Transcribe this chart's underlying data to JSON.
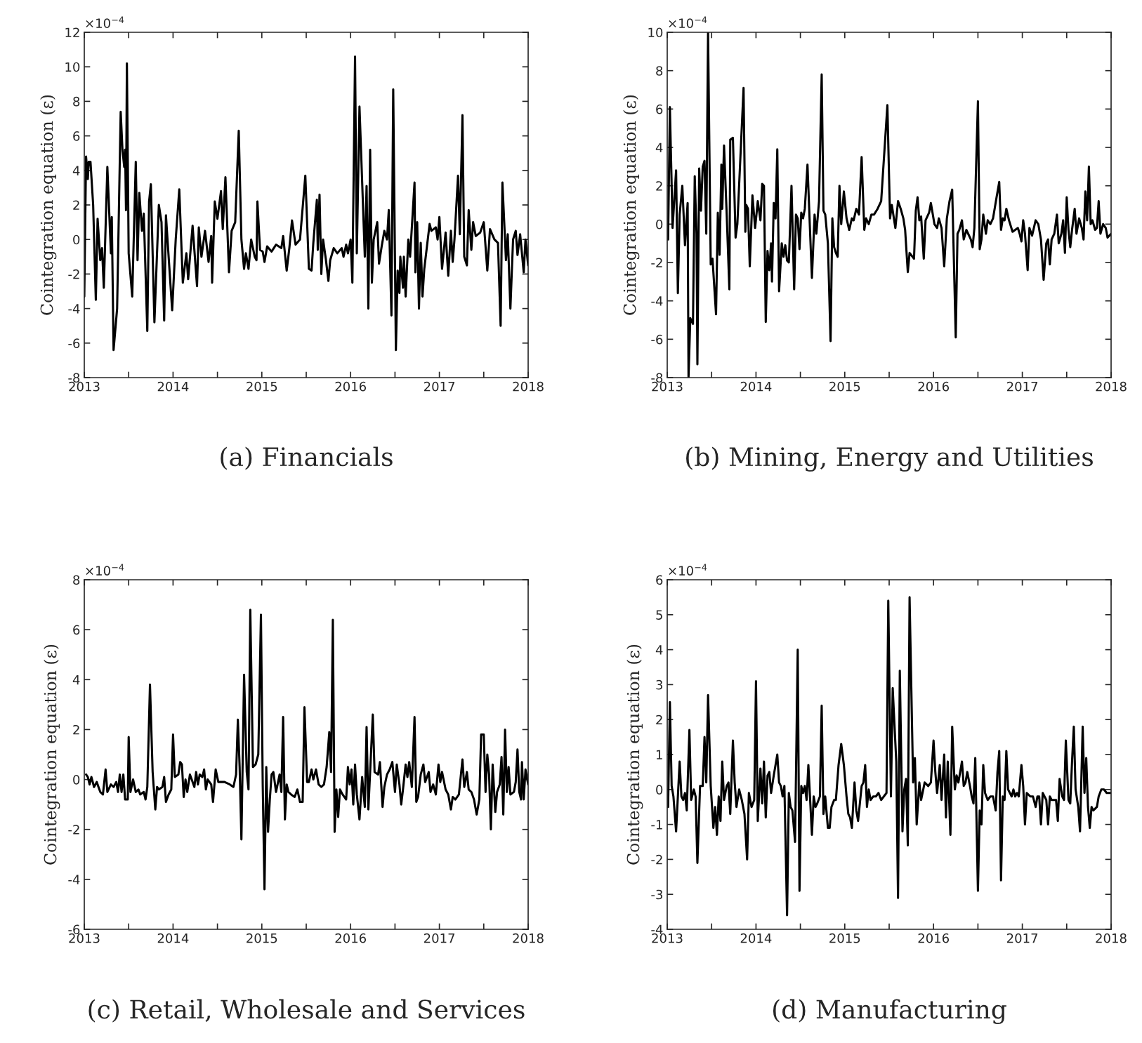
{
  "chart_data": [
    {
      "type": "line",
      "ylabel": "Cointegration equation (ε)",
      "annotations": [
        "×10$^{−4}$",
        "(a) Financials"
      ],
      "xlim": [
        2013,
        2018
      ],
      "ylim": [
        -8,
        12
      ],
      "xticks": [
        2013,
        {
          "value": 2013.5,
          "label": null
        },
        2014,
        {
          "value": 2014.5,
          "label": null
        },
        2015,
        {
          "value": 2015.5,
          "label": null
        },
        2016,
        {
          "value": 2016.5,
          "label": null
        },
        2017,
        {
          "value": 2017.5,
          "label": null
        },
        2018
      ],
      "yticks": [
        -8,
        -6,
        -4,
        -2,
        0,
        2,
        4,
        6,
        8,
        10,
        12
      ],
      "grid": false,
      "marker": "none",
      "line_style": "solid",
      "x": [
        2013.0,
        2013.02,
        2013.04,
        2013.05,
        2013.07,
        2013.1,
        2013.13,
        2013.15,
        2013.18,
        2013.2,
        2013.22,
        2013.26,
        2013.3,
        2013.31,
        2013.33,
        2013.37,
        2013.41,
        2013.43,
        2013.45,
        2013.46,
        2013.47,
        2013.48,
        2013.5,
        2013.54,
        2013.58,
        2013.6,
        2013.62,
        2013.65,
        2013.67,
        2013.71,
        2013.73,
        2013.75,
        2013.79,
        2013.84,
        2013.87,
        2013.9,
        2013.92,
        2013.94,
        2013.99,
        2014.03,
        2014.07,
        2014.11,
        2014.15,
        2014.17,
        2014.22,
        2014.27,
        2014.29,
        2014.32,
        2014.36,
        2014.4,
        2014.43,
        2014.44,
        2014.47,
        2014.5,
        2014.54,
        2014.56,
        2014.59,
        2014.63,
        2014.66,
        2014.7,
        2014.74,
        2014.77,
        2014.8,
        2014.82,
        2014.85,
        2014.88,
        2014.92,
        2014.94,
        2014.95,
        2014.98,
        2015.01,
        2015.03,
        2015.06,
        2015.11,
        2015.16,
        2015.22,
        2015.24,
        2015.28,
        2015.31,
        2015.34,
        2015.38,
        2015.43,
        2015.49,
        2015.53,
        2015.56,
        2015.58,
        2015.62,
        2015.63,
        2015.65,
        2015.67,
        2015.69,
        2015.72,
        2015.75,
        2015.77,
        2015.81,
        2015.85,
        2015.9,
        2015.92,
        2015.95,
        2015.97,
        2016.0,
        2016.02,
        2016.05,
        2016.07,
        2016.1,
        2016.16,
        2016.18,
        2016.2,
        2016.22,
        2016.24,
        2016.26,
        2016.3,
        2016.32,
        2016.35,
        2016.38,
        2016.41,
        2016.43,
        2016.46,
        2016.48,
        2016.51,
        2016.53,
        2016.55,
        2016.56,
        2016.59,
        2016.6,
        2016.62,
        2016.65,
        2016.67,
        2016.72,
        2016.73,
        2016.75,
        2016.77,
        2016.79,
        2016.81,
        2016.83,
        2016.89,
        2016.91,
        2016.96,
        2016.98,
        2017.0,
        2017.03,
        2017.07,
        2017.1,
        2017.13,
        2017.15,
        2017.17,
        2017.21,
        2017.23,
        2017.26,
        2017.28,
        2017.31,
        2017.33,
        2017.36,
        2017.38,
        2017.41,
        2017.46,
        2017.5,
        2017.54,
        2017.57,
        2017.62,
        2017.66,
        2017.69,
        2017.71,
        2017.75,
        2017.77,
        2017.8,
        2017.83,
        2017.86,
        2017.88,
        2017.91,
        2017.95,
        2017.97,
        2018.0
      ],
      "series": [
        {
          "color": "#000000",
          "values": [
            -3.3,
            4.8,
            3.5,
            4.5,
            4.5,
            2,
            -3.5,
            1.2,
            -1.2,
            -0.5,
            -2.8,
            4.2,
            -0.8,
            1.3,
            -6.4,
            -4,
            7.4,
            5.2,
            4.2,
            5.2,
            1.7,
            10.2,
            -0.8,
            -3.3,
            4.5,
            -1.2,
            2.7,
            0.5,
            1.5,
            -5.3,
            2.2,
            3.2,
            -4.8,
            2,
            1,
            -4.7,
            1.4,
            -0.2,
            -4.1,
            0,
            2.9,
            -2.5,
            -0.8,
            -2.3,
            0.8,
            -2.7,
            0.7,
            -1,
            0.5,
            -1.3,
            0.2,
            -2.5,
            2.2,
            1.2,
            2.8,
            0.6,
            3.6,
            -1.9,
            0.5,
            1,
            6.3,
            0,
            -1.7,
            -0.8,
            -1.7,
            0,
            -1,
            -1.2,
            2.2,
            -0.6,
            -0.7,
            -1.3,
            -0.4,
            -0.7,
            -0.3,
            -0.5,
            0.2,
            -1.8,
            -0.5,
            1.1,
            -0.3,
            0,
            3.7,
            -1.7,
            -1.8,
            -0.2,
            2.3,
            -0.6,
            2.6,
            -2,
            0,
            -1.1,
            -2.4,
            -1.2,
            -0.5,
            -0.8,
            -0.5,
            -1,
            -0.3,
            -0.8,
            0,
            -2.5,
            10.6,
            -0.8,
            7.7,
            -1,
            3.1,
            -4,
            5.2,
            -2.5,
            0,
            1,
            -1.4,
            -0.4,
            0.5,
            0,
            1.7,
            -4.4,
            8.7,
            -6.4,
            -1.8,
            -3.1,
            -1,
            -2.8,
            -1,
            -3.3,
            0,
            -1,
            3.3,
            -1.9,
            1,
            -4,
            -0.2,
            -3.3,
            -1.7,
            0.9,
            0.5,
            0.7,
            0,
            1.3,
            -1.7,
            0.4,
            -2.1,
            0.5,
            -1.3,
            0,
            3.7,
            0.3,
            7.2,
            -1,
            -1.5,
            1.7,
            -0.6,
            1,
            0.2,
            0.4,
            1,
            -1.8,
            0.6,
            0,
            -0.2,
            -5,
            3.3,
            -1.2,
            0.3,
            -4,
            0,
            0.5,
            -0.9,
            0.3,
            -1.9,
            0,
            -1.5
          ]
        }
      ]
    },
    {
      "type": "line",
      "ylabel": "Cointegration equation (ε)",
      "annotations": [
        "×10$^{−4}$",
        "(b) Mining, Energy and Utilities"
      ],
      "xlim": [
        2013,
        2018
      ],
      "ylim": [
        -8,
        10
      ],
      "xticks": [
        2013,
        {
          "value": 2013.5,
          "label": null
        },
        2014,
        {
          "value": 2014.5,
          "label": null
        },
        2015,
        {
          "value": 2015.5,
          "label": null
        },
        2016,
        {
          "value": 2016.5,
          "label": null
        },
        2017,
        {
          "value": 2017.5,
          "label": null
        },
        2018
      ],
      "yticks": [
        -8,
        -6,
        -4,
        -2,
        0,
        2,
        4,
        6,
        8,
        10
      ],
      "grid": false,
      "marker": "none",
      "line_style": "solid",
      "x": [
        2013.01,
        2013.03,
        2013.05,
        2013.06,
        2013.1,
        2013.12,
        2013.14,
        2013.17,
        2013.2,
        2013.23,
        2013.24,
        2013.26,
        2013.29,
        2013.31,
        2013.33,
        2013.34,
        2013.36,
        2013.38,
        2013.4,
        2013.42,
        2013.44,
        2013.46,
        2013.49,
        2013.51,
        2013.55,
        2013.57,
        2013.59,
        2013.61,
        2013.62,
        2013.64,
        2013.67,
        2013.7,
        2013.71,
        2013.74,
        2013.77,
        2013.79,
        2013.86,
        2013.88,
        2013.89,
        2013.91,
        2013.93,
        2013.96,
        2013.99,
        2014.02,
        2014.05,
        2014.07,
        2014.09,
        2014.11,
        2014.13,
        2014.15,
        2014.17,
        2014.18,
        2014.2,
        2014.22,
        2014.24,
        2014.26,
        2014.29,
        2014.31,
        2014.33,
        2014.35,
        2014.37,
        2014.4,
        2014.43,
        2014.45,
        2014.47,
        2014.49,
        2014.51,
        2014.53,
        2014.55,
        2014.58,
        2014.61,
        2014.63,
        2014.66,
        2014.68,
        2014.71,
        2014.74,
        2014.76,
        2014.78,
        2014.81,
        2014.84,
        2014.86,
        2014.88,
        2014.9,
        2014.92,
        2014.94,
        2014.96,
        2014.99,
        2015.02,
        2015.05,
        2015.08,
        2015.1,
        2015.13,
        2015.16,
        2015.19,
        2015.22,
        2015.24,
        2015.27,
        2015.3,
        2015.33,
        2015.37,
        2015.41,
        2015.48,
        2015.51,
        2015.53,
        2015.57,
        2015.6,
        2015.63,
        2015.66,
        2015.68,
        2015.71,
        2015.73,
        2015.78,
        2015.8,
        2015.82,
        2015.84,
        2015.86,
        2015.89,
        2015.91,
        2015.95,
        2015.97,
        2016.01,
        2016.04,
        2016.06,
        2016.09,
        2016.12,
        2016.15,
        2016.18,
        2016.21,
        2016.25,
        2016.27,
        2016.29,
        2016.32,
        2016.34,
        2016.37,
        2016.39,
        2016.42,
        2016.44,
        2016.46,
        2016.5,
        2016.52,
        2016.54,
        2016.56,
        2016.59,
        2016.61,
        2016.64,
        2016.67,
        2016.71,
        2016.74,
        2016.76,
        2016.78,
        2016.8,
        2016.82,
        2016.85,
        2016.89,
        2016.92,
        2016.95,
        2016.97,
        2016.99,
        2017.01,
        2017.03,
        2017.06,
        2017.08,
        2017.11,
        2017.15,
        2017.18,
        2017.21,
        2017.24,
        2017.27,
        2017.29,
        2017.31,
        2017.33,
        2017.36,
        2017.39,
        2017.41,
        2017.44,
        2017.46,
        2017.48,
        2017.5,
        2017.52,
        2017.54,
        2017.56,
        2017.59,
        2017.61,
        2017.64,
        2017.67,
        2017.69,
        2017.71,
        2017.73,
        2017.75,
        2017.77,
        2017.79,
        2017.82,
        2017.84,
        2017.86,
        2017.88,
        2017.91,
        2017.94,
        2017.96,
        2018.0
      ],
      "series": [
        {
          "color": "#000000",
          "values": [
            -0.8,
            6.1,
            2,
            -0.2,
            2.8,
            -3.6,
            0.5,
            2,
            -1.1,
            1.1,
            -8,
            -4.9,
            -5.2,
            2.5,
            -0.5,
            -7.3,
            2.9,
            0.7,
            3,
            3.3,
            -0.5,
            10,
            -2.1,
            -1.8,
            -4.7,
            0.6,
            -1.6,
            3.1,
            0.8,
            4.1,
            0.5,
            -3.4,
            4.4,
            4.5,
            -0.7,
            0,
            7.1,
            -0.4,
            1,
            0.8,
            -2.2,
            1.5,
            -0.2,
            1.2,
            0.2,
            2.1,
            2,
            -5.1,
            -1.4,
            -2.4,
            -1,
            -3,
            1.1,
            0.3,
            3.9,
            -3.5,
            -1,
            -1.7,
            -1.1,
            -1.9,
            -2,
            2,
            -3.4,
            0.5,
            0.3,
            -1.3,
            0.6,
            0.3,
            0.8,
            3.1,
            -0.5,
            -2.8,
            0.5,
            -0.5,
            1.2,
            7.8,
            0.7,
            0.5,
            -1,
            -6.1,
            0.3,
            -1.2,
            -1.5,
            -1.7,
            2,
            0,
            1.7,
            0.3,
            -0.3,
            0.3,
            0.2,
            0.8,
            0.5,
            3.5,
            -0.3,
            0.3,
            0,
            0.5,
            0.5,
            0.8,
            1.2,
            6.2,
            0.3,
            1,
            -0.2,
            1.2,
            0.8,
            0.3,
            -0.3,
            -2.5,
            -1.5,
            -1.8,
            0.7,
            1.4,
            0.2,
            0.4,
            -1.8,
            0.2,
            0.6,
            1.1,
            0,
            -0.2,
            0.3,
            -0.2,
            -2.2,
            0.3,
            1.2,
            1.8,
            -5.9,
            -0.5,
            -0.3,
            0.2,
            -0.8,
            -0.3,
            -0.5,
            -0.8,
            -1.2,
            -0.2,
            6.4,
            -1.3,
            -0.8,
            0.5,
            -0.5,
            0.2,
            0,
            0.3,
            1.4,
            2.2,
            -0.3,
            0.3,
            0.2,
            0.8,
            0.2,
            -0.4,
            -0.3,
            -0.2,
            -0.5,
            -0.9,
            0.2,
            -0.5,
            -2.4,
            -0.2,
            -0.6,
            0.2,
            0,
            -0.8,
            -2.9,
            -1,
            -0.8,
            -2.1,
            -0.8,
            -0.5,
            0.5,
            -1,
            -0.5,
            0.2,
            -1.5,
            1.4,
            -0.3,
            -1.2,
            -0.3,
            0.8,
            -0.5,
            0.3,
            -0.2,
            -0.8,
            1.7,
            0.2,
            3,
            0,
            0.2,
            -0.3,
            -0.2,
            1.2,
            -0.5,
            0,
            -0.2,
            -0.7,
            -0.5
          ]
        }
      ]
    },
    {
      "type": "line",
      "ylabel": "Cointegration equation (ε)",
      "annotations": [
        "×10$^{−4}$",
        "(c) Retail, Wholesale and Services"
      ],
      "xlim": [
        2013,
        2018
      ],
      "ylim": [
        -6,
        8
      ],
      "xticks": [
        2013,
        {
          "value": 2013.5,
          "label": null
        },
        2014,
        {
          "value": 2014.5,
          "label": null
        },
        2015,
        {
          "value": 2015.5,
          "label": null
        },
        2016,
        {
          "value": 2016.5,
          "label": null
        },
        2017,
        {
          "value": 2017.5,
          "label": null
        },
        2018
      ],
      "yticks": [
        -6,
        -4,
        -2,
        0,
        2,
        4,
        6,
        8
      ],
      "grid": false,
      "marker": "none",
      "line_style": "solid",
      "x": [
        2013.02,
        2013.04,
        2013.06,
        2013.08,
        2013.11,
        2013.14,
        2013.18,
        2013.21,
        2013.24,
        2013.26,
        2013.3,
        2013.33,
        2013.36,
        2013.38,
        2013.4,
        2013.42,
        2013.44,
        2013.46,
        2013.49,
        2013.5,
        2013.52,
        2013.55,
        2013.58,
        2013.61,
        2013.63,
        2013.67,
        2013.69,
        2013.71,
        2013.74,
        2013.77,
        2013.8,
        2013.82,
        2013.84,
        2013.88,
        2013.9,
        2013.92,
        2013.95,
        2013.98,
        2014.0,
        2014.02,
        2014.06,
        2014.08,
        2014.1,
        2014.12,
        2014.14,
        2014.16,
        2014.19,
        2014.21,
        2014.24,
        2014.26,
        2014.28,
        2014.3,
        2014.33,
        2014.35,
        2014.37,
        2014.39,
        2014.43,
        2014.45,
        2014.48,
        2014.51,
        2014.54,
        2014.58,
        2014.64,
        2014.68,
        2014.71,
        2014.73,
        2014.75,
        2014.77,
        2014.8,
        2014.83,
        2014.85,
        2014.87,
        2014.9,
        2014.93,
        2014.96,
        2014.99,
        2015.01,
        2015.03,
        2015.05,
        2015.07,
        2015.09,
        2015.11,
        2015.13,
        2015.16,
        2015.2,
        2015.22,
        2015.24,
        2015.26,
        2015.28,
        2015.3,
        2015.33,
        2015.37,
        2015.4,
        2015.43,
        2015.46,
        2015.48,
        2015.51,
        2015.53,
        2015.56,
        2015.58,
        2015.61,
        2015.64,
        2015.67,
        2015.7,
        2015.73,
        2015.76,
        2015.78,
        2015.8,
        2015.82,
        2015.84,
        2015.86,
        2015.88,
        2015.91,
        2015.95,
        2015.97,
        2015.99,
        2016.01,
        2016.03,
        2016.05,
        2016.07,
        2016.1,
        2016.13,
        2016.16,
        2016.18,
        2016.2,
        2016.22,
        2016.25,
        2016.27,
        2016.31,
        2016.33,
        2016.36,
        2016.38,
        2016.41,
        2016.44,
        2016.47,
        2016.5,
        2016.52,
        2016.55,
        2016.57,
        2016.59,
        2016.62,
        2016.64,
        2016.66,
        2016.69,
        2016.72,
        2016.74,
        2016.76,
        2016.79,
        2016.82,
        2016.84,
        2016.88,
        2016.9,
        2016.93,
        2016.96,
        2016.99,
        2017.01,
        2017.03,
        2017.07,
        2017.1,
        2017.13,
        2017.15,
        2017.18,
        2017.22,
        2017.26,
        2017.28,
        2017.31,
        2017.33,
        2017.36,
        2017.39,
        2017.42,
        2017.45,
        2017.47,
        2017.5,
        2017.52,
        2017.54,
        2017.56,
        2017.58,
        2017.6,
        2017.63,
        2017.65,
        2017.68,
        2017.7,
        2017.72,
        2017.74,
        2017.76,
        2017.78,
        2017.8,
        2017.84,
        2017.86,
        2017.88,
        2017.9,
        2017.92,
        2017.93,
        2017.95,
        2017.97,
        2018.0
      ],
      "series": [
        {
          "color": "#000000",
          "values": [
            0.2,
            0.1,
            -0.2,
            0.1,
            -0.3,
            -0.1,
            -0.5,
            -0.6,
            0.4,
            -0.5,
            -0.2,
            -0.3,
            -0.1,
            -0.5,
            0.2,
            -0.5,
            0.2,
            -0.8,
            -0.8,
            1.7,
            -0.5,
            0,
            -0.5,
            -0.4,
            -0.6,
            -0.5,
            -0.8,
            -0.3,
            3.8,
            0.3,
            -1.2,
            -0.3,
            -0.4,
            -0.3,
            0.1,
            -0.9,
            -0.6,
            -0.4,
            1.8,
            0.1,
            0.2,
            0.7,
            0.6,
            -0.7,
            0,
            -0.5,
            0.2,
            0,
            -0.3,
            0.3,
            -0.2,
            0.2,
            0.1,
            0.4,
            -0.4,
            0,
            -0.2,
            -0.9,
            0.4,
            -0.1,
            -0.1,
            -0.1,
            -0.2,
            -0.3,
            0.2,
            2.4,
            0.5,
            -2.4,
            4.2,
            0.3,
            -0.4,
            6.8,
            0.5,
            0.6,
            1,
            6.6,
            -0.2,
            -4.4,
            0.5,
            -2.1,
            -0.8,
            0.2,
            0.3,
            -0.5,
            0.2,
            -0.5,
            2.5,
            -1.6,
            -0.2,
            -0.5,
            -0.6,
            -0.7,
            -0.4,
            -0.9,
            -0.9,
            2.9,
            -0.1,
            -0.1,
            0.4,
            0,
            0.4,
            -0.2,
            -0.3,
            -0.2,
            0.5,
            1.9,
            0.3,
            6.4,
            -2.1,
            -0.4,
            -1.5,
            -0.4,
            -0.6,
            -0.8,
            0.5,
            -0.2,
            0.4,
            -1,
            0.6,
            -0.6,
            -1.6,
            0.1,
            -1.1,
            2.1,
            -1.2,
            0.3,
            2.6,
            0.3,
            0.2,
            0.7,
            -1.1,
            -0.3,
            0.2,
            0.4,
            0.7,
            -0.5,
            0.6,
            -0.2,
            -1,
            -0.4,
            0.6,
            0.1,
            0.7,
            -0.3,
            2.5,
            -0.9,
            -0.7,
            0.2,
            0.6,
            -0.1,
            0.3,
            -0.5,
            -0.2,
            -0.6,
            0.6,
            -0.1,
            0.3,
            -0.4,
            -0.6,
            -1.2,
            -0.7,
            -0.8,
            -0.6,
            0.8,
            -0.3,
            0.3,
            -0.4,
            -0.5,
            -0.8,
            -1.4,
            -0.8,
            1.8,
            1.8,
            -0.5,
            1,
            0.2,
            -2,
            0.6,
            -1.3,
            -0.5,
            -0.2,
            0.9,
            -1.4,
            2,
            -0.5,
            0.5,
            -0.6,
            -0.5,
            -0.1,
            1.2,
            -0.5,
            -0.8,
            0.7,
            -0.8,
            0.4,
            -0.2
          ]
        }
      ]
    },
    {
      "type": "line",
      "ylabel": "Cointegration equation (ε)",
      "annotations": [
        "×10$^{−4}$",
        "(d) Manufacturing"
      ],
      "xlim": [
        2013,
        2018
      ],
      "ylim": [
        -4,
        6
      ],
      "xticks": [
        2013,
        {
          "value": 2013.5,
          "label": null
        },
        2014,
        {
          "value": 2014.5,
          "label": null
        },
        2015,
        {
          "value": 2015.5,
          "label": null
        },
        2016,
        {
          "value": 2016.5,
          "label": null
        },
        2017,
        {
          "value": 2017.5,
          "label": null
        },
        2018
      ],
      "yticks": [
        -4,
        -3,
        -2,
        -1,
        0,
        1,
        2,
        3,
        4,
        5,
        6
      ],
      "grid": false,
      "marker": "none",
      "line_style": "solid",
      "x": [
        2013.01,
        2013.03,
        2013.05,
        2013.07,
        2013.1,
        2013.14,
        2013.16,
        2013.18,
        2013.2,
        2013.22,
        2013.25,
        2013.27,
        2013.3,
        2013.32,
        2013.34,
        2013.37,
        2013.4,
        2013.42,
        2013.44,
        2013.46,
        2013.49,
        2013.52,
        2013.54,
        2013.56,
        2013.58,
        2013.6,
        2013.62,
        2013.64,
        2013.67,
        2013.69,
        2013.71,
        2013.74,
        2013.76,
        2013.78,
        2013.81,
        2013.84,
        2013.87,
        2013.9,
        2013.92,
        2013.95,
        2013.98,
        2014.0,
        2014.02,
        2014.05,
        2014.07,
        2014.09,
        2014.11,
        2014.13,
        2014.15,
        2014.17,
        2014.2,
        2014.24,
        2014.26,
        2014.28,
        2014.3,
        2014.32,
        2014.35,
        2014.37,
        2014.39,
        2014.41,
        2014.44,
        2014.47,
        2014.49,
        2014.51,
        2014.53,
        2014.55,
        2014.57,
        2014.59,
        2014.63,
        2014.65,
        2014.67,
        2014.69,
        2014.72,
        2014.74,
        2014.76,
        2014.78,
        2014.81,
        2014.83,
        2014.85,
        2014.88,
        2014.9,
        2014.93,
        2014.96,
        2014.99,
        2015.02,
        2015.04,
        2015.06,
        2015.08,
        2015.11,
        2015.13,
        2015.15,
        2015.19,
        2015.21,
        2015.23,
        2015.25,
        2015.27,
        2015.29,
        2015.32,
        2015.35,
        2015.38,
        2015.41,
        2015.44,
        2015.47,
        2015.49,
        2015.52,
        2015.54,
        2015.58,
        2015.6,
        2015.62,
        2015.65,
        2015.67,
        2015.69,
        2015.71,
        2015.73,
        2015.77,
        2015.79,
        2015.81,
        2015.84,
        2015.86,
        2015.9,
        2015.94,
        2015.97,
        2016.0,
        2016.02,
        2016.04,
        2016.07,
        2016.09,
        2016.12,
        2016.14,
        2016.16,
        2016.19,
        2016.21,
        2016.24,
        2016.26,
        2016.28,
        2016.32,
        2016.34,
        2016.36,
        2016.38,
        2016.41,
        2016.43,
        2016.45,
        2016.47,
        2016.5,
        2016.52,
        2016.54,
        2016.56,
        2016.58,
        2016.61,
        2016.64,
        2016.67,
        2016.7,
        2016.72,
        2016.74,
        2016.76,
        2016.78,
        2016.8,
        2016.82,
        2016.84,
        2016.88,
        2016.9,
        2016.92,
        2016.94,
        2016.96,
        2016.99,
        2017.01,
        2017.03,
        2017.05,
        2017.09,
        2017.12,
        2017.15,
        2017.17,
        2017.19,
        2017.21,
        2017.23,
        2017.27,
        2017.29,
        2017.31,
        2017.33,
        2017.36,
        2017.38,
        2017.4,
        2017.42,
        2017.45,
        2017.47,
        2017.49,
        2017.52,
        2017.54,
        2017.56,
        2017.58,
        2017.6,
        2017.63,
        2017.65,
        2017.68,
        2017.7,
        2017.72,
        2017.74,
        2017.76,
        2017.78,
        2017.8,
        2017.84,
        2017.86,
        2017.89,
        2017.92,
        2017.95,
        2018.0
      ],
      "series": [
        {
          "color": "#000000",
          "values": [
            -0.5,
            2.5,
            0.1,
            -0.2,
            -1.2,
            0.8,
            -0.2,
            -0.3,
            -0.1,
            -0.6,
            1.7,
            -0.3,
            0,
            -0.2,
            -2.1,
            0.1,
            0.1,
            1.5,
            0.2,
            2.7,
            0.1,
            -1.1,
            -0.5,
            -1.3,
            -0.2,
            -0.9,
            0.8,
            -0.3,
            0.1,
            0.2,
            -0.7,
            1.4,
            0.2,
            -0.5,
            0,
            -0.3,
            -0.7,
            -2,
            -0.1,
            -0.5,
            -0.3,
            3.1,
            -0.9,
            0.6,
            -0.4,
            0.8,
            -0.8,
            0.4,
            0.5,
            -0.1,
            0.4,
            1,
            0.2,
            0.1,
            -0.2,
            0.1,
            -3.6,
            -0.1,
            -0.5,
            -0.6,
            -1.5,
            4,
            -2.9,
            0.1,
            -0.1,
            0.1,
            -0.3,
            0.7,
            -1.3,
            -0.2,
            -0.5,
            -0.4,
            -0.2,
            2.4,
            -0.7,
            -0.2,
            -1.1,
            -1.1,
            -0.5,
            -0.3,
            -0.3,
            0.7,
            1.3,
            0.7,
            -0.2,
            -0.7,
            -0.8,
            -1.1,
            0.2,
            -0.6,
            -0.9,
            0.1,
            0.2,
            0.7,
            -0.5,
            0,
            -0.3,
            -0.2,
            -0.2,
            -0.1,
            -0.3,
            -0.2,
            -0.1,
            5.4,
            -0.2,
            2.9,
            0.8,
            -3.1,
            3.4,
            -1.2,
            0,
            0.3,
            -1.6,
            5.5,
            0.2,
            0.9,
            -1,
            0.2,
            -0.3,
            0.2,
            0.1,
            0.2,
            1.4,
            0.5,
            -0.1,
            0.7,
            -0.3,
            1,
            -0.8,
            0.8,
            -1.3,
            1.8,
            0,
            0.4,
            0.2,
            0.8,
            0.1,
            0.2,
            0.5,
            0.1,
            -0.2,
            -0.4,
            0.9,
            -2.9,
            -0.6,
            -1,
            0.7,
            -0.1,
            -0.3,
            -0.2,
            -0.2,
            -0.6,
            0.5,
            1.1,
            -2.6,
            -0.2,
            -0.3,
            1.1,
            0,
            -0.2,
            0,
            -0.2,
            -0.1,
            -0.2,
            0.7,
            0.1,
            -1,
            -0.1,
            -0.2,
            -0.2,
            -0.5,
            -0.2,
            -0.2,
            -1,
            -0.1,
            -0.3,
            -1,
            -0.2,
            -0.3,
            -0.3,
            -0.3,
            -0.9,
            0.3,
            -0.2,
            -0.3,
            1.4,
            -0.3,
            -0.4,
            0.8,
            1.8,
            0,
            -0.5,
            -1.2,
            1.8,
            -0.1,
            0.9,
            -0.5,
            -1.1,
            -0.5,
            -0.6,
            -0.5,
            -0.2,
            0,
            0,
            -0.1,
            -0.1
          ]
        }
      ]
    }
  ]
}
